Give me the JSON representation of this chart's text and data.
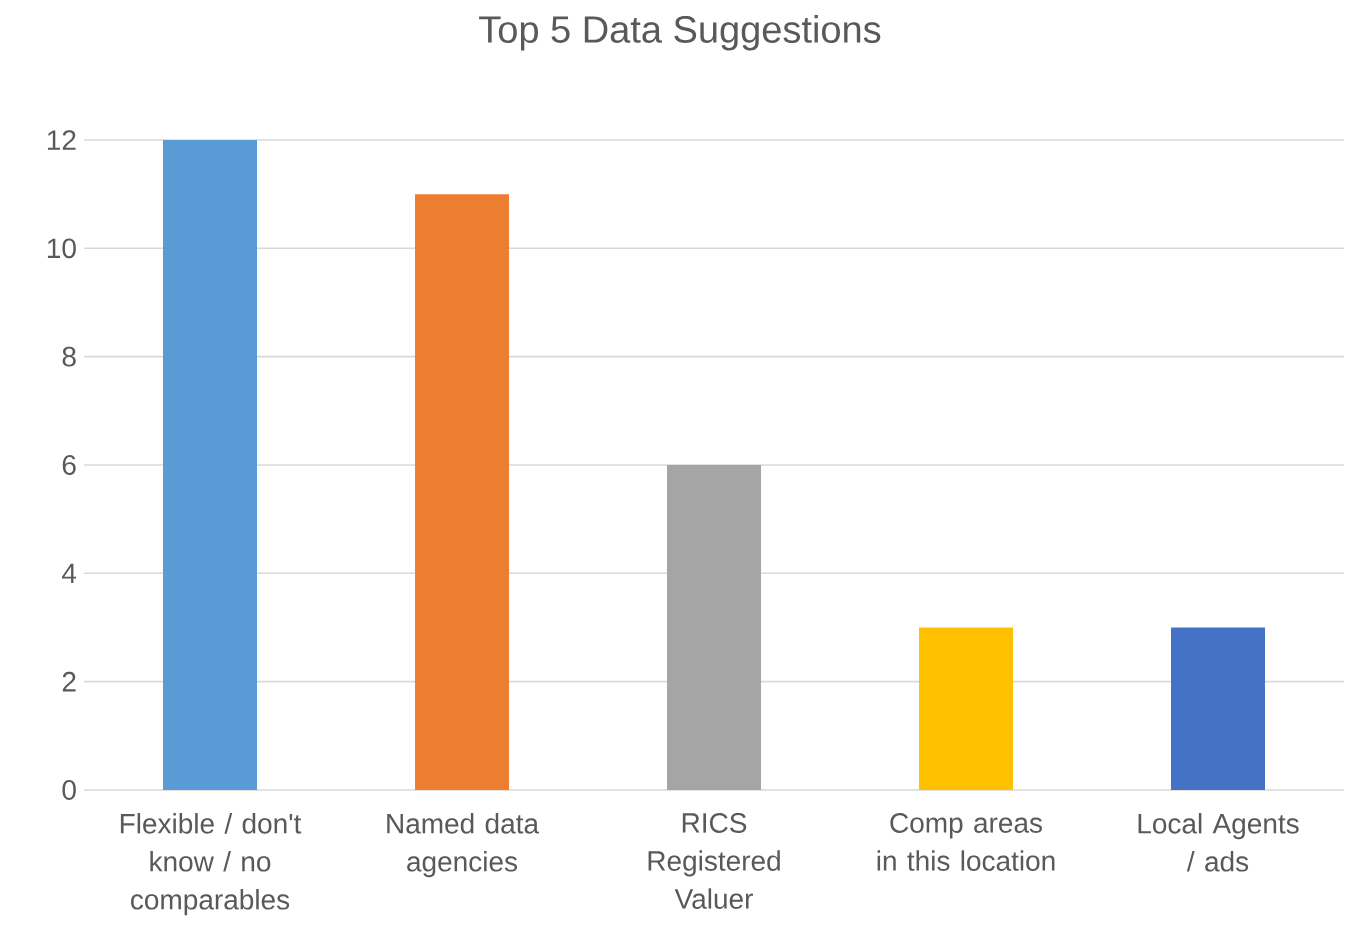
{
  "chart_data": {
    "type": "bar",
    "title": "Top 5 Data Suggestions",
    "categories": [
      "Flexible / don't know / no comparables",
      "Named data agencies",
      "RICS Registered Valuer",
      "Comp areas in this location",
      "Local Agents / ads"
    ],
    "values": [
      12,
      11,
      6,
      3,
      3
    ],
    "colors": [
      "#5b9bd5",
      "#ed7d31",
      "#a5a5a5",
      "#ffc000",
      "#4472c4"
    ],
    "ylim": [
      0,
      12
    ],
    "yticks": [
      0,
      2,
      4,
      6,
      8,
      10,
      12
    ],
    "grid": "y"
  }
}
